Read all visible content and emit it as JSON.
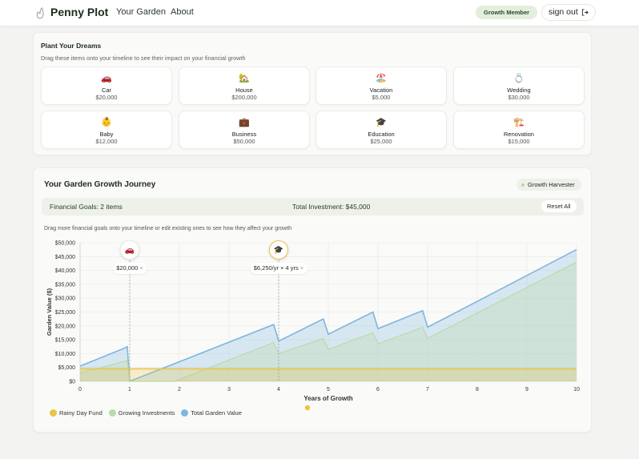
{
  "header": {
    "brand": "Penny Plot",
    "nav": [
      "Your Garden",
      "About"
    ],
    "badge": "Growth Member",
    "signout": "sign out"
  },
  "plant": {
    "title": "Plant Your Dreams",
    "subtitle": "Drag these items onto your timeline to see their impact on your financial growth",
    "items": [
      {
        "emoji": "🚗",
        "name": "Car",
        "price": "$20,000"
      },
      {
        "emoji": "🏡",
        "name": "House",
        "price": "$200,000"
      },
      {
        "emoji": "🏖️",
        "name": "Vacation",
        "price": "$5,000"
      },
      {
        "emoji": "💍",
        "name": "Wedding",
        "price": "$30,000"
      },
      {
        "emoji": "👶",
        "name": "Baby",
        "price": "$12,000"
      },
      {
        "emoji": "💼",
        "name": "Business",
        "price": "$50,000"
      },
      {
        "emoji": "🎓",
        "name": "Education",
        "price": "$25,000"
      },
      {
        "emoji": "🏗️",
        "name": "Renovation",
        "price": "$15,000"
      }
    ]
  },
  "journey": {
    "title": "Your Garden Growth Journey",
    "level_badge": "Growth Harvester",
    "goals_text": "Financial Goals: 2 items",
    "investment_text": "Total Investment: $45,000",
    "reset_label": "Reset All",
    "hint": "Drag more financial goals onto your timeline or edit existing ones to see how they affect your growth",
    "markers": [
      {
        "emoji": "🚗",
        "label": "$20,000",
        "year": 1
      },
      {
        "emoji": "🎓",
        "label": "$6,250/yr × 4 yrs",
        "year": 4
      }
    ],
    "close_symbol": "×"
  },
  "chart_data": {
    "type": "area",
    "xlabel": "Years of Growth",
    "ylabel": "Garden Value ($)",
    "xlim": [
      0,
      10
    ],
    "ylim": [
      0,
      50000
    ],
    "xticks": [
      "0",
      "1",
      "2",
      "3",
      "4",
      "5",
      "6",
      "7",
      "8",
      "9",
      "10"
    ],
    "yticks": [
      "$0",
      "$5,000",
      "$10,000",
      "$15,000",
      "$20,000",
      "$25,000",
      "$30,000",
      "$35,000",
      "$40,000",
      "$45,000",
      "$50,000"
    ],
    "grid": true,
    "legend_position": "bottom-left",
    "series": [
      {
        "name": "Rainy Day Fund",
        "color": "#e8c547",
        "x": [
          0,
          0.95,
          1.0,
          10
        ],
        "y": [
          4500,
          4500,
          4500,
          4500
        ]
      },
      {
        "name": "Growing Investments",
        "color": "#bcd9ac",
        "x": [
          0,
          0.95,
          1.0,
          1.9,
          3.9,
          4.0,
          4.9,
          5.0,
          5.9,
          6.0,
          6.9,
          7.0,
          10
        ],
        "y": [
          3000,
          7500,
          0,
          0,
          14000,
          10000,
          15500,
          11500,
          17500,
          13500,
          19500,
          15500,
          43000
        ]
      },
      {
        "name": "Total Garden Value",
        "color": "#7fb6e0",
        "x": [
          0,
          0.9,
          0.95,
          1.0,
          3.9,
          4.0,
          4.9,
          5.0,
          5.9,
          6.0,
          6.9,
          7.0,
          10
        ],
        "y": [
          5500,
          12000,
          12500,
          0,
          20500,
          14500,
          22500,
          17000,
          25000,
          19000,
          25500,
          19500,
          47500
        ]
      }
    ]
  }
}
